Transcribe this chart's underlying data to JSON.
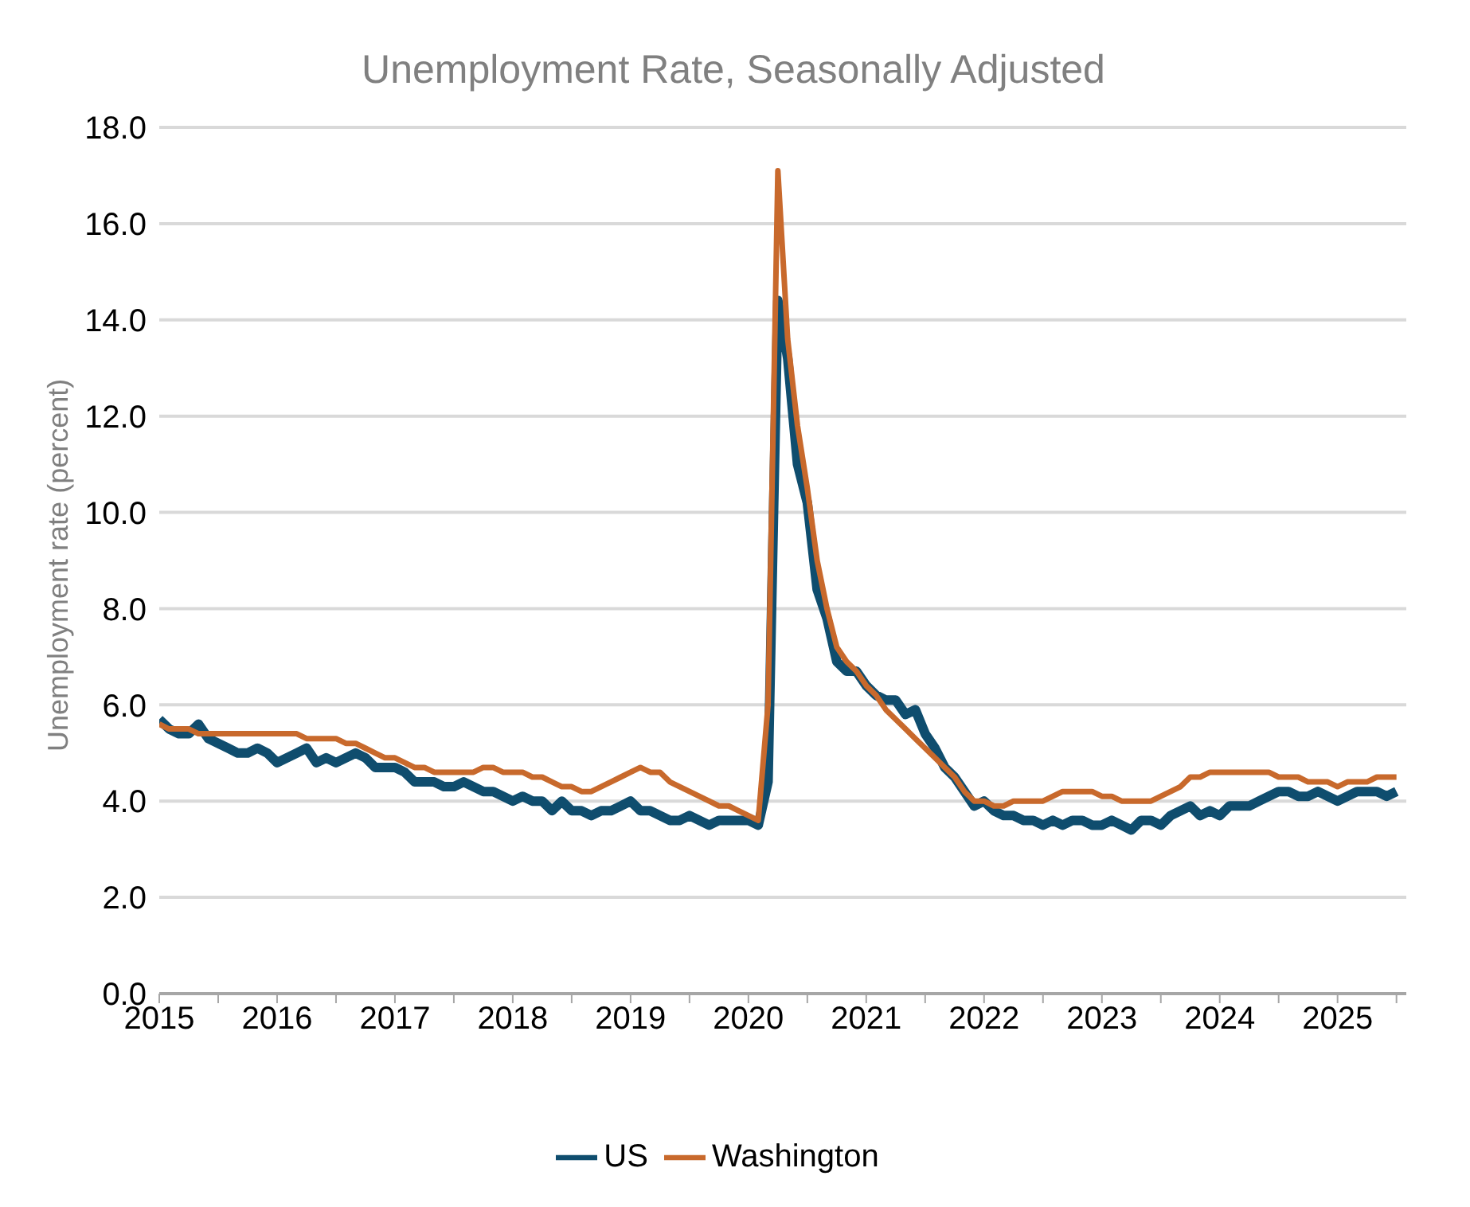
{
  "chart_data": {
    "type": "line",
    "title": "Unemployment Rate, Seasonally Adjusted",
    "ylabel": "Unemployment rate (percent)",
    "x": [
      "2015-01",
      "2015-02",
      "2015-03",
      "2015-04",
      "2015-05",
      "2015-06",
      "2015-07",
      "2015-08",
      "2015-09",
      "2015-10",
      "2015-11",
      "2015-12",
      "2016-01",
      "2016-02",
      "2016-03",
      "2016-04",
      "2016-05",
      "2016-06",
      "2016-07",
      "2016-08",
      "2016-09",
      "2016-10",
      "2016-11",
      "2016-12",
      "2017-01",
      "2017-02",
      "2017-03",
      "2017-04",
      "2017-05",
      "2017-06",
      "2017-07",
      "2017-08",
      "2017-09",
      "2017-10",
      "2017-11",
      "2017-12",
      "2018-01",
      "2018-02",
      "2018-03",
      "2018-04",
      "2018-05",
      "2018-06",
      "2018-07",
      "2018-08",
      "2018-09",
      "2018-10",
      "2018-11",
      "2018-12",
      "2019-01",
      "2019-02",
      "2019-03",
      "2019-04",
      "2019-05",
      "2019-06",
      "2019-07",
      "2019-08",
      "2019-09",
      "2019-10",
      "2019-11",
      "2019-12",
      "2020-01",
      "2020-02",
      "2020-03",
      "2020-04",
      "2020-05",
      "2020-06",
      "2020-07",
      "2020-08",
      "2020-09",
      "2020-10",
      "2020-11",
      "2020-12",
      "2021-01",
      "2021-02",
      "2021-03",
      "2021-04",
      "2021-05",
      "2021-06",
      "2021-07",
      "2021-08",
      "2021-09",
      "2021-10",
      "2021-11",
      "2021-12",
      "2022-01",
      "2022-02",
      "2022-03",
      "2022-04",
      "2022-05",
      "2022-06",
      "2022-07",
      "2022-08",
      "2022-09",
      "2022-10",
      "2022-11",
      "2022-12",
      "2023-01",
      "2023-02",
      "2023-03",
      "2023-04",
      "2023-05",
      "2023-06",
      "2023-07",
      "2023-08",
      "2023-09",
      "2023-10",
      "2023-11",
      "2023-12",
      "2024-01",
      "2024-02",
      "2024-03",
      "2024-04",
      "2024-05",
      "2024-06",
      "2024-07",
      "2024-08",
      "2024-09",
      "2024-10",
      "2024-11",
      "2024-12",
      "2025-01",
      "2025-02",
      "2025-03",
      "2025-04",
      "2025-05",
      "2025-06",
      "2025-07"
    ],
    "series": [
      {
        "name": "US",
        "color": "#0f4d6e",
        "values": [
          5.7,
          5.5,
          5.4,
          5.4,
          5.6,
          5.3,
          5.2,
          5.1,
          5.0,
          5.0,
          5.1,
          5.0,
          4.8,
          4.9,
          5.0,
          5.1,
          4.8,
          4.9,
          4.8,
          4.9,
          5.0,
          4.9,
          4.7,
          4.7,
          4.7,
          4.6,
          4.4,
          4.4,
          4.4,
          4.3,
          4.3,
          4.4,
          4.3,
          4.2,
          4.2,
          4.1,
          4.0,
          4.1,
          4.0,
          4.0,
          3.8,
          4.0,
          3.8,
          3.8,
          3.7,
          3.8,
          3.8,
          3.9,
          4.0,
          3.8,
          3.8,
          3.7,
          3.6,
          3.6,
          3.7,
          3.6,
          3.5,
          3.6,
          3.6,
          3.6,
          3.6,
          3.5,
          4.4,
          14.4,
          13.2,
          11.0,
          10.2,
          8.4,
          7.8,
          6.9,
          6.7,
          6.7,
          6.4,
          6.2,
          6.1,
          6.1,
          5.8,
          5.9,
          5.4,
          5.1,
          4.7,
          4.5,
          4.2,
          3.9,
          4.0,
          3.8,
          3.7,
          3.7,
          3.6,
          3.6,
          3.5,
          3.6,
          3.5,
          3.6,
          3.6,
          3.5,
          3.5,
          3.6,
          3.5,
          3.4,
          3.6,
          3.6,
          3.5,
          3.7,
          3.8,
          3.9,
          3.7,
          3.8,
          3.7,
          3.9,
          3.9,
          3.9,
          4.0,
          4.1,
          4.2,
          4.2,
          4.1,
          4.1,
          4.2,
          4.1,
          4.0,
          4.1,
          4.2,
          4.2,
          4.2,
          4.1,
          4.2
        ]
      },
      {
        "name": "Washington",
        "color": "#c8692c",
        "values": [
          5.6,
          5.5,
          5.5,
          5.5,
          5.4,
          5.4,
          5.4,
          5.4,
          5.4,
          5.4,
          5.4,
          5.4,
          5.4,
          5.4,
          5.4,
          5.3,
          5.3,
          5.3,
          5.3,
          5.2,
          5.2,
          5.1,
          5.0,
          4.9,
          4.9,
          4.8,
          4.7,
          4.7,
          4.6,
          4.6,
          4.6,
          4.6,
          4.6,
          4.7,
          4.7,
          4.6,
          4.6,
          4.6,
          4.5,
          4.5,
          4.4,
          4.3,
          4.3,
          4.2,
          4.2,
          4.3,
          4.4,
          4.5,
          4.6,
          4.7,
          4.6,
          4.6,
          4.4,
          4.3,
          4.2,
          4.1,
          4.0,
          3.9,
          3.9,
          3.8,
          3.7,
          3.6,
          6.0,
          17.1,
          13.6,
          11.8,
          10.5,
          9.0,
          8.0,
          7.2,
          6.9,
          6.7,
          6.4,
          6.2,
          5.9,
          5.7,
          5.5,
          5.3,
          5.1,
          4.9,
          4.7,
          4.5,
          4.2,
          4.0,
          4.0,
          3.9,
          3.9,
          4.0,
          4.0,
          4.0,
          4.0,
          4.1,
          4.2,
          4.2,
          4.2,
          4.2,
          4.1,
          4.1,
          4.0,
          4.0,
          4.0,
          4.0,
          4.1,
          4.2,
          4.3,
          4.5,
          4.5,
          4.6,
          4.6,
          4.6,
          4.6,
          4.6,
          4.6,
          4.6,
          4.5,
          4.5,
          4.5,
          4.4,
          4.4,
          4.4,
          4.3,
          4.4,
          4.4,
          4.4,
          4.5,
          4.5,
          4.5
        ]
      }
    ],
    "xlim": [
      "2015-01",
      "2025-08"
    ],
    "xticks": [
      "2015",
      {
        "value": "2015-07",
        "label": null
      },
      "2016",
      {
        "value": "2016-07",
        "label": null
      },
      "2017",
      {
        "value": "2017-07",
        "label": null
      },
      "2018",
      {
        "value": "2018-07",
        "label": null
      },
      "2019",
      {
        "value": "2019-07",
        "label": null
      },
      "2020",
      {
        "value": "2020-07",
        "label": null
      },
      "2021",
      {
        "value": "2021-07",
        "label": null
      },
      "2022",
      {
        "value": "2022-07",
        "label": null
      },
      "2023",
      {
        "value": "2023-07",
        "label": null
      },
      "2024",
      {
        "value": "2024-07",
        "label": null
      },
      "2025",
      {
        "value": "2025-07",
        "label": null
      }
    ],
    "ylim": [
      0,
      18
    ],
    "yticks": [
      {
        "value": 0,
        "label": "0.0"
      },
      {
        "value": 2,
        "label": "2.0"
      },
      {
        "value": 4,
        "label": "4.0"
      },
      {
        "value": 6,
        "label": "6.0"
      },
      {
        "value": 8,
        "label": "8.0"
      },
      {
        "value": 10,
        "label": "10.0"
      },
      {
        "value": 12,
        "label": "12.0"
      },
      {
        "value": 14,
        "label": "14.0"
      },
      {
        "value": 16,
        "label": "16.0"
      },
      {
        "value": 18,
        "label": "18.0"
      }
    ],
    "grid": "y",
    "legend": "bottom",
    "marker": "none",
    "line_style": "solid"
  }
}
